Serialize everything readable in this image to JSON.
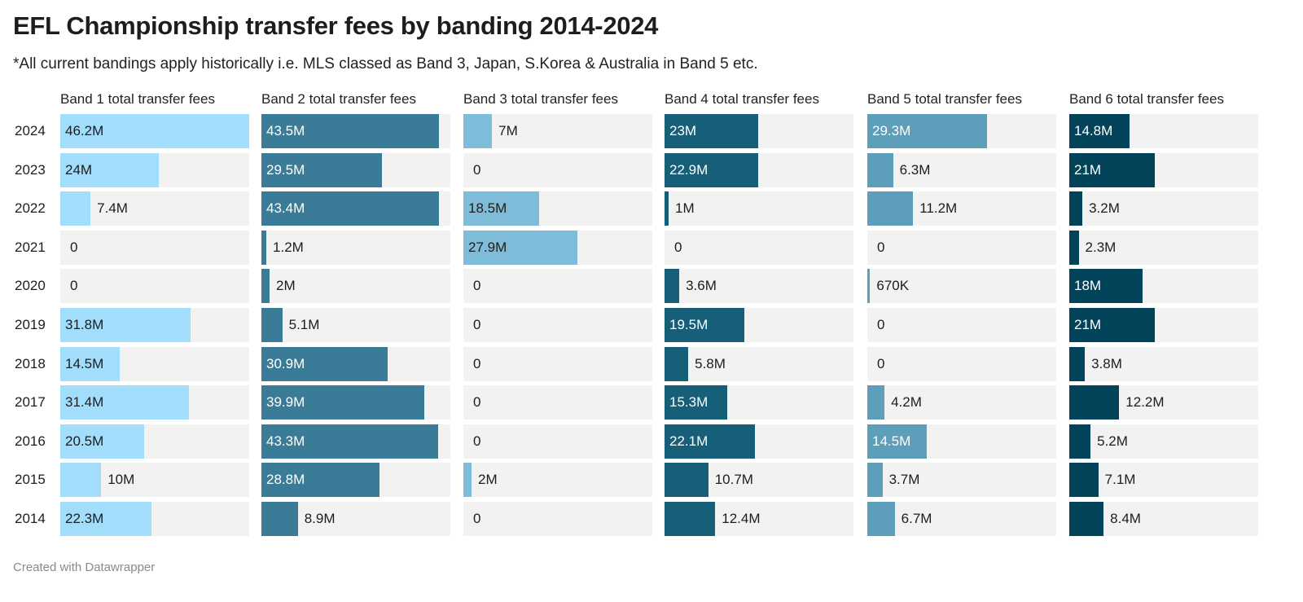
{
  "title": "EFL Championship transfer fees by banding 2014-2024",
  "subtitle": "*All current bandings apply historically i.e. MLS classed as Band 3, Japan, S.Korea & Australia in Band 5 etc.",
  "footer": "Created with Datawrapper",
  "chart_data": {
    "type": "bar",
    "orientation": "horizontal",
    "categories": [
      "2024",
      "2023",
      "2022",
      "2021",
      "2020",
      "2019",
      "2018",
      "2017",
      "2016",
      "2015",
      "2014"
    ],
    "xlim": [
      0,
      46.2
    ],
    "unit": "M",
    "series": [
      {
        "name": "Band 1 total transfer fees",
        "color": "#a2ddfb",
        "label_color_inside": "#1d1d1d",
        "values": [
          46.2,
          24,
          7.4,
          0,
          0,
          31.8,
          14.5,
          31.4,
          20.5,
          10,
          22.3
        ],
        "labels": [
          "46.2M",
          "24M",
          "7.4M",
          "0",
          "0",
          "31.8M",
          "14.5M",
          "31.4M",
          "20.5M",
          "10M",
          "22.3M"
        ]
      },
      {
        "name": "Band 2 total transfer fees",
        "color": "#3a7c97",
        "label_color_inside": "#ffffff",
        "values": [
          43.5,
          29.5,
          43.4,
          1.2,
          2,
          5.1,
          30.9,
          39.9,
          43.3,
          28.8,
          8.9
        ],
        "labels": [
          "43.5M",
          "29.5M",
          "43.4M",
          "1.2M",
          "2M",
          "5.1M",
          "30.9M",
          "39.9M",
          "43.3M",
          "28.8M",
          "8.9M"
        ]
      },
      {
        "name": "Band 3 total transfer fees",
        "color": "#7fbcd9",
        "label_color_inside": "#1d1d1d",
        "values": [
          7,
          0,
          18.5,
          27.9,
          0,
          0,
          0,
          0,
          0,
          2,
          0
        ],
        "labels": [
          "7M",
          "0",
          "18.5M",
          "27.9M",
          "0",
          "0",
          "0",
          "0",
          "0",
          "2M",
          "0"
        ]
      },
      {
        "name": "Band 4 total transfer fees",
        "color": "#175e78",
        "label_color_inside": "#ffffff",
        "values": [
          23,
          22.9,
          1,
          0,
          3.6,
          19.5,
          5.8,
          15.3,
          22.1,
          10.7,
          12.4
        ],
        "labels": [
          "23M",
          "22.9M",
          "1M",
          "0",
          "3.6M",
          "19.5M",
          "5.8M",
          "15.3M",
          "22.1M",
          "10.7M",
          "12.4M"
        ]
      },
      {
        "name": "Band 5 total transfer fees",
        "color": "#5d9eba",
        "label_color_inside": "#ffffff",
        "values": [
          29.3,
          6.3,
          11.2,
          0,
          0.67,
          0,
          0,
          4.2,
          14.5,
          3.7,
          6.7
        ],
        "labels": [
          "29.3M",
          "6.3M",
          "11.2M",
          "0",
          "670K",
          "0",
          "0",
          "4.2M",
          "14.5M",
          "3.7M",
          "6.7M"
        ]
      },
      {
        "name": "Band 6 total transfer fees",
        "color": "#03435a",
        "label_color_inside": "#ffffff",
        "values": [
          14.8,
          21,
          3.2,
          2.3,
          18,
          21,
          3.8,
          12.2,
          5.2,
          7.1,
          8.4
        ],
        "labels": [
          "14.8M",
          "21M",
          "3.2M",
          "2.3M",
          "18M",
          "21M",
          "3.8M",
          "12.2M",
          "5.2M",
          "7.1M",
          "8.4M"
        ]
      }
    ]
  }
}
